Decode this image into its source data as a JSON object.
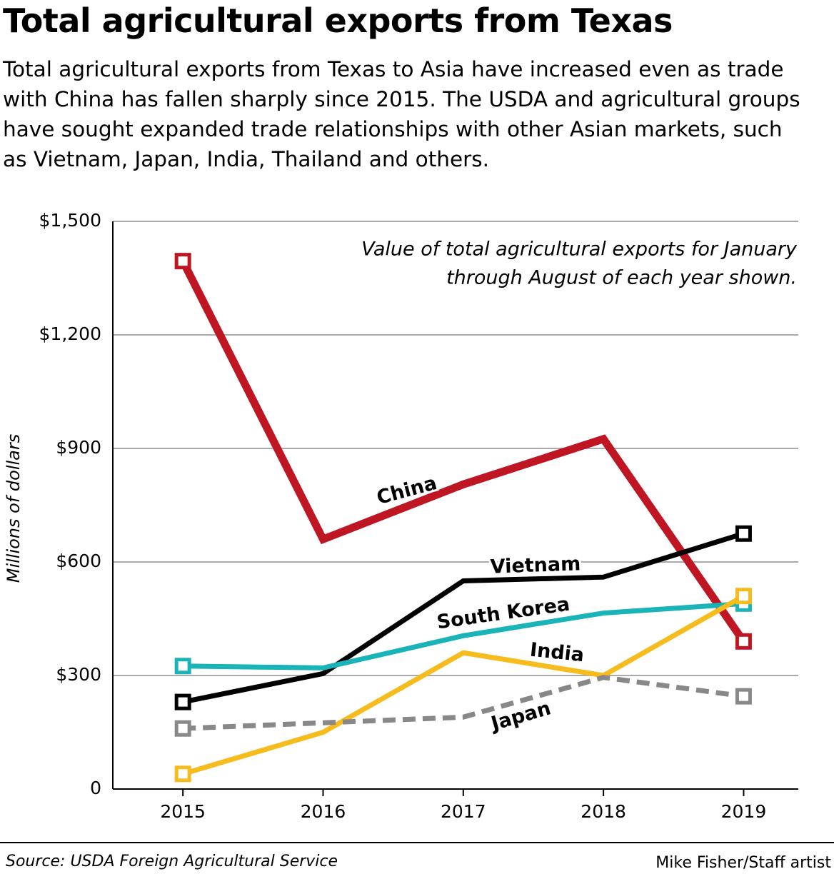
{
  "chart_data": {
    "type": "line",
    "title": "Total agricultural exports from Texas",
    "subtitle": "Total agricultural exports from Texas to Asia have increased even as trade with China has fallen sharply since 2015. The USDA and agricultural groups have sought expanded trade relationships with other Asian markets, such as Vietnam, Japan, India, Thailand and others.",
    "annotation": [
      "Value of total agricultural exports for January",
      "through August of each year shown."
    ],
    "y_label": "Millions of dollars",
    "source": "Source: USDA Foreign Agricultural Service",
    "credit": "Mike Fisher/Staff artist",
    "x": [
      2015,
      2016,
      2017,
      2018,
      2019
    ],
    "xlim": [
      2014.5,
      2019.39
    ],
    "xticks": [
      2015,
      2016,
      2017,
      2018,
      2019
    ],
    "ylim": [
      0,
      1500
    ],
    "yticks": [
      0,
      {
        "value": 300,
        "label": "$300"
      },
      {
        "value": 600,
        "label": "$600"
      },
      {
        "value": 900,
        "label": "$900"
      },
      {
        "value": 1200,
        "label": "$1,200"
      },
      {
        "value": 1500,
        "label": "$1,500"
      }
    ],
    "grid": true,
    "series": [
      {
        "name": "China",
        "color": "#be1622",
        "values": [
          1395,
          660,
          805,
          925,
          390
        ]
      },
      {
        "name": "Vietnam",
        "color": "#000000",
        "values": [
          230,
          305,
          550,
          560,
          675
        ]
      },
      {
        "name": "South Korea",
        "color": "#1ab3b8",
        "values": [
          325,
          320,
          405,
          465,
          490
        ]
      },
      {
        "name": "India",
        "color": "#f6bb1c",
        "values": [
          40,
          150,
          360,
          300,
          510
        ]
      },
      {
        "name": "Japan",
        "color": "#888888",
        "style": "dashed",
        "values": [
          160,
          175,
          190,
          295,
          245
        ]
      }
    ]
  }
}
